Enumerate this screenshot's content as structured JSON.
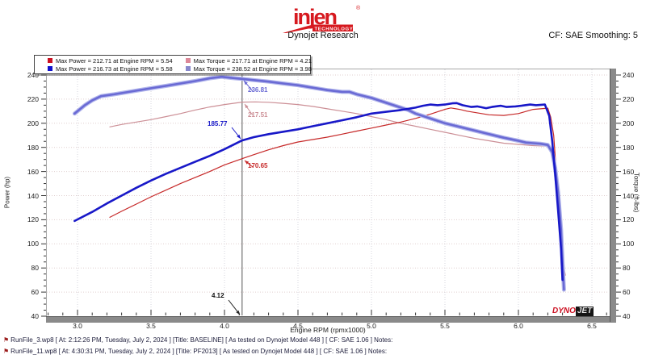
{
  "header": {
    "logo": {
      "brand": "injen",
      "sub": "TECHNOLOGY",
      "registered": "®",
      "color": "#d6191f"
    },
    "title": "Dynojet Research",
    "smoothing": "CF: SAE Smoothing: 5"
  },
  "legend": {
    "entries": [
      {
        "label": "Max Power = 212.71 at Engine RPM = 5.54",
        "color": "#cc1122"
      },
      {
        "label": "Max Torque = 217.71 at Engine RPM = 4.21",
        "color": "#dd8899"
      },
      {
        "label": "Max Power = 216.73 at Engine RPM = 5.58",
        "color": "#1111cc"
      },
      {
        "label": "Max Torque = 238.52 at Engine RPM = 3.98",
        "color": "#8888cc"
      }
    ]
  },
  "chart_data": {
    "type": "line",
    "title": "Dynojet Research",
    "xlabel": "Engine RPM (rpmx1000)",
    "ylabel_left": "Power (hp)",
    "ylabel_right": "Torque (ft-lbs)",
    "xlim": [
      2.78,
      6.62
    ],
    "ylim": [
      40,
      240
    ],
    "x_ticks": [
      3.0,
      3.5,
      4.0,
      4.5,
      5.0,
      5.5,
      6.0,
      6.5
    ],
    "y_ticks": [
      40,
      60,
      80,
      100,
      120,
      140,
      160,
      180,
      200,
      220,
      240
    ],
    "x_minor": {
      "from": 2.8,
      "to": 6.6,
      "step": 0.1
    },
    "y_minor": {
      "from": 40,
      "to": 240,
      "step": 5
    },
    "grid": true,
    "legend_position": "top-left",
    "cursor": {
      "rpm": 4.12,
      "rpm_label": "4.12",
      "labels": {
        "torque_pf2013": "236.81",
        "torque_baseline": "217.51",
        "power_pf2013": "185.77",
        "power_baseline": "170.65"
      }
    },
    "series": [
      {
        "id": "torque_baseline",
        "name": "Torque BASELINE",
        "axis": "torque",
        "color": "#cc8f96",
        "width": 1.2,
        "max": {
          "value": 217.71,
          "rpm": 4.21
        },
        "points": [
          [
            3.22,
            197
          ],
          [
            3.3,
            199
          ],
          [
            3.4,
            201
          ],
          [
            3.5,
            203
          ],
          [
            3.6,
            205.5
          ],
          [
            3.7,
            208
          ],
          [
            3.8,
            211
          ],
          [
            3.9,
            213.5
          ],
          [
            4.0,
            215.5
          ],
          [
            4.12,
            217.51
          ],
          [
            4.21,
            217.71
          ],
          [
            4.3,
            217.4
          ],
          [
            4.4,
            216.5
          ],
          [
            4.5,
            215.5
          ],
          [
            4.6,
            214
          ],
          [
            4.7,
            212
          ],
          [
            4.8,
            210
          ],
          [
            4.9,
            208
          ],
          [
            5.0,
            205.5
          ],
          [
            5.1,
            203
          ],
          [
            5.2,
            200
          ],
          [
            5.3,
            197.5
          ],
          [
            5.4,
            195
          ],
          [
            5.5,
            192.5
          ],
          [
            5.6,
            190
          ],
          [
            5.7,
            187.5
          ],
          [
            5.8,
            185.5
          ],
          [
            5.9,
            183.5
          ],
          [
            6.0,
            182.5
          ],
          [
            6.1,
            181.5
          ],
          [
            6.2,
            181
          ],
          [
            6.23,
            174
          ],
          [
            6.25,
            160
          ],
          [
            6.27,
            138
          ],
          [
            6.29,
            108
          ],
          [
            6.31,
            80
          ],
          [
            6.32,
            74
          ]
        ]
      },
      {
        "id": "power_baseline",
        "name": "Power BASELINE",
        "axis": "power",
        "color": "#c62828",
        "width": 1.2,
        "max": {
          "value": 212.71,
          "rpm": 5.54
        },
        "points": [
          [
            3.22,
            122
          ],
          [
            3.3,
            127
          ],
          [
            3.4,
            133
          ],
          [
            3.5,
            139
          ],
          [
            3.6,
            144.5
          ],
          [
            3.7,
            150
          ],
          [
            3.8,
            155
          ],
          [
            3.9,
            160
          ],
          [
            4.0,
            165.5
          ],
          [
            4.12,
            170.65
          ],
          [
            4.2,
            174
          ],
          [
            4.3,
            178
          ],
          [
            4.4,
            181.5
          ],
          [
            4.5,
            184.5
          ],
          [
            4.6,
            186.5
          ],
          [
            4.7,
            188.5
          ],
          [
            4.8,
            191
          ],
          [
            4.9,
            193.5
          ],
          [
            5.0,
            196
          ],
          [
            5.1,
            198.5
          ],
          [
            5.2,
            201
          ],
          [
            5.3,
            204
          ],
          [
            5.4,
            207.5
          ],
          [
            5.45,
            209.5
          ],
          [
            5.5,
            211.5
          ],
          [
            5.54,
            212.71
          ],
          [
            5.6,
            211.5
          ],
          [
            5.65,
            210
          ],
          [
            5.7,
            209
          ],
          [
            5.8,
            207
          ],
          [
            5.9,
            206.5
          ],
          [
            6.0,
            208
          ],
          [
            6.1,
            211.5
          ],
          [
            6.2,
            212.5
          ],
          [
            6.22,
            205
          ],
          [
            6.24,
            190
          ],
          [
            6.26,
            155
          ],
          [
            6.28,
            115
          ],
          [
            6.3,
            78
          ]
        ]
      },
      {
        "id": "torque_pf2013",
        "name": "Torque PF2013",
        "axis": "torque",
        "color": "#6a6ad4",
        "halo": "#b2b6ec",
        "width": 2.6,
        "max": {
          "value": 238.52,
          "rpm": 3.98
        },
        "points": [
          [
            2.98,
            208
          ],
          [
            3.05,
            215
          ],
          [
            3.1,
            219
          ],
          [
            3.16,
            222.5
          ],
          [
            3.25,
            224
          ],
          [
            3.3,
            225
          ],
          [
            3.4,
            227
          ],
          [
            3.5,
            229
          ],
          [
            3.6,
            231
          ],
          [
            3.7,
            233
          ],
          [
            3.8,
            235
          ],
          [
            3.9,
            237.3
          ],
          [
            3.98,
            238.52
          ],
          [
            4.05,
            237.6
          ],
          [
            4.12,
            236.81
          ],
          [
            4.2,
            235.8
          ],
          [
            4.3,
            234.5
          ],
          [
            4.4,
            233
          ],
          [
            4.5,
            231.5
          ],
          [
            4.6,
            229.5
          ],
          [
            4.7,
            227.5
          ],
          [
            4.8,
            226
          ],
          [
            4.85,
            226
          ],
          [
            4.9,
            224
          ],
          [
            5.0,
            221
          ],
          [
            5.1,
            217
          ],
          [
            5.2,
            213
          ],
          [
            5.25,
            211
          ],
          [
            5.3,
            208
          ],
          [
            5.4,
            204
          ],
          [
            5.5,
            200
          ],
          [
            5.6,
            197
          ],
          [
            5.7,
            194
          ],
          [
            5.8,
            191
          ],
          [
            5.9,
            188
          ],
          [
            6.0,
            185.5
          ],
          [
            6.05,
            184
          ],
          [
            6.1,
            183.5
          ],
          [
            6.15,
            183
          ],
          [
            6.2,
            182
          ],
          [
            6.23,
            176
          ],
          [
            6.25,
            163
          ],
          [
            6.27,
            143
          ],
          [
            6.29,
            112
          ],
          [
            6.3,
            85
          ],
          [
            6.31,
            62
          ]
        ]
      },
      {
        "id": "power_pf2013",
        "name": "Power PF2013",
        "axis": "power",
        "color": "#1818c8",
        "width": 2.6,
        "max": {
          "value": 216.73,
          "rpm": 5.58
        },
        "points": [
          [
            2.98,
            119
          ],
          [
            3.1,
            126.5
          ],
          [
            3.2,
            133.5
          ],
          [
            3.3,
            140
          ],
          [
            3.4,
            146.5
          ],
          [
            3.5,
            152.5
          ],
          [
            3.6,
            158
          ],
          [
            3.7,
            163
          ],
          [
            3.8,
            168
          ],
          [
            3.9,
            173
          ],
          [
            4.0,
            178.5
          ],
          [
            4.12,
            185.77
          ],
          [
            4.2,
            188.5
          ],
          [
            4.3,
            191
          ],
          [
            4.4,
            193
          ],
          [
            4.5,
            195
          ],
          [
            4.6,
            197.5
          ],
          [
            4.7,
            200
          ],
          [
            4.8,
            202.5
          ],
          [
            4.9,
            205
          ],
          [
            5.0,
            208
          ],
          [
            5.1,
            209.5
          ],
          [
            5.2,
            211
          ],
          [
            5.25,
            212
          ],
          [
            5.3,
            213
          ],
          [
            5.35,
            214.5
          ],
          [
            5.4,
            215.5
          ],
          [
            5.45,
            215
          ],
          [
            5.5,
            215.5
          ],
          [
            5.55,
            216.5
          ],
          [
            5.58,
            216.73
          ],
          [
            5.62,
            215
          ],
          [
            5.68,
            213.5
          ],
          [
            5.72,
            214
          ],
          [
            5.78,
            212.5
          ],
          [
            5.82,
            213.5
          ],
          [
            5.88,
            214.5
          ],
          [
            5.92,
            213.5
          ],
          [
            5.98,
            214
          ],
          [
            6.02,
            214.5
          ],
          [
            6.08,
            215.5
          ],
          [
            6.12,
            215
          ],
          [
            6.18,
            215.5
          ],
          [
            6.21,
            206
          ],
          [
            6.23,
            185
          ],
          [
            6.25,
            158
          ],
          [
            6.27,
            128
          ],
          [
            6.29,
            96
          ],
          [
            6.3,
            70
          ]
        ]
      }
    ]
  },
  "branding": {
    "dyno": "DYNO",
    "jet": "JET"
  },
  "icons": {
    "run_file": "⚑"
  },
  "footer": {
    "runs": [
      {
        "text": "RunFile_3.wp8 [ At: 2:12:26 PM, Tuesday, July 2, 2024 ] [Title: BASELINE]  [ As tested on Dynojet Model 448 ] [ CF: SAE 1.06 ] Notes:"
      },
      {
        "text": "RunFile_11.wp8 [ At: 4:30:31 PM, Tuesday, July 2, 2024 ] [Title: PF2013]  [ As tested on Dynojet Model 448 ] [ CF: SAE 1.06 ] Notes:"
      }
    ]
  }
}
